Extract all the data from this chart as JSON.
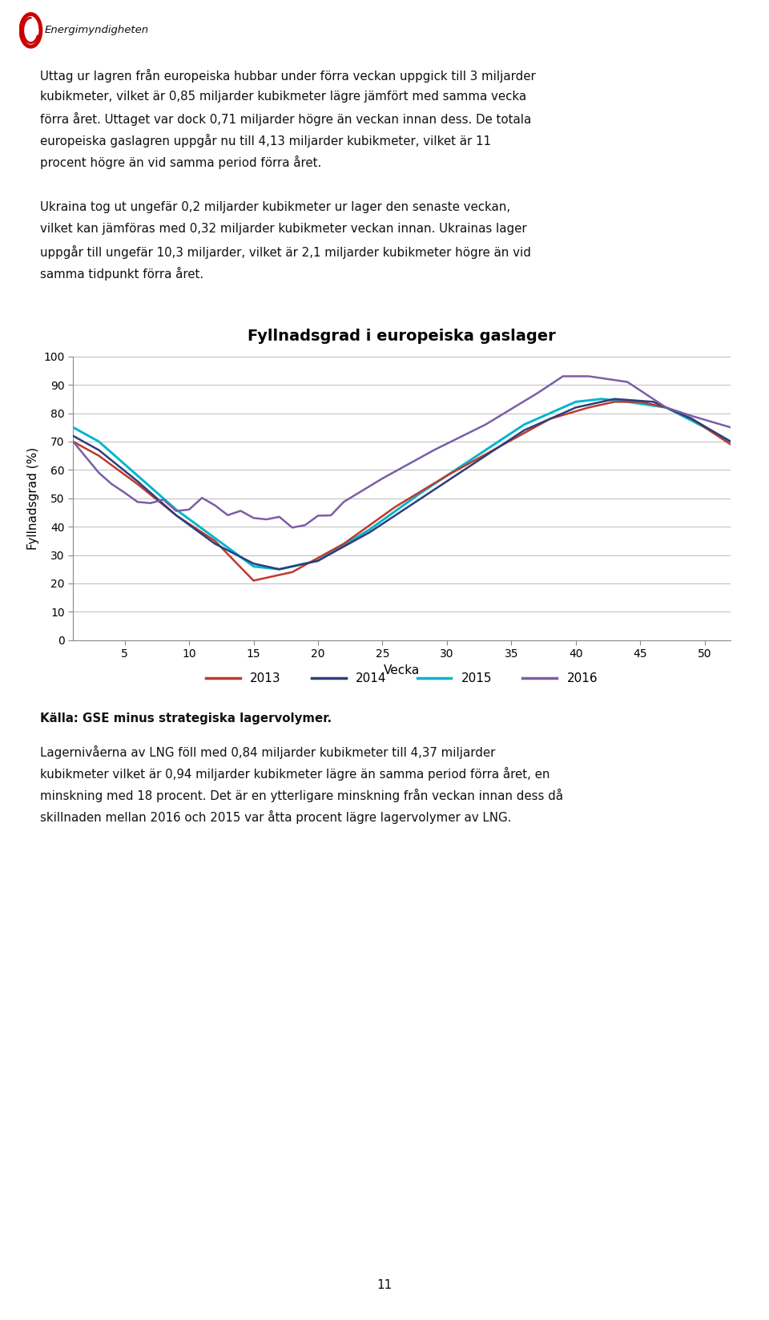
{
  "title": "Fyllnadsgrad i europeiska gaslager",
  "xlabel": "Vecka",
  "ylabel": "Fyllnadsgrad (%)",
  "ylim": [
    0,
    100
  ],
  "yticks": [
    0,
    10,
    20,
    30,
    40,
    50,
    60,
    70,
    80,
    90,
    100
  ],
  "xticks": [
    5,
    10,
    15,
    20,
    25,
    30,
    35,
    40,
    45,
    50
  ],
  "colors": {
    "2013": "#c0392b",
    "2014": "#2c3e7a",
    "2015": "#00b5cc",
    "2016": "#7B5EA7"
  },
  "header_lines": [
    "Uttag ur lagren från europeiska hubbar under förra veckan uppgick till 3 miljarder",
    "kubikmeter, vilket är 0,85 miljarder kubikmeter lägre jämfört med samma vecka",
    "förra året. Uttaget var dock 0,71 miljarder högre än veckan innan dess. De totala",
    "europeiska gaslagren uppgår nu till 4,13 miljarder kubikmeter, vilket är 11",
    "procent högre än vid samma period förra året."
  ],
  "ukraine_lines": [
    "Ukraina tog ut ungefär 0,2 miljarder kubikmeter ur lager den senaste veckan,",
    "vilket kan jämföras med 0,32 miljarder kubikmeter veckan innan. Ukrainas lager",
    "uppgår till ungefär 10,3 miljarder, vilket är 2,1 miljarder kubikmeter högre än vid",
    "samma tidpunkt förra året."
  ],
  "source_text": "Källa: GSE minus strategiska lagervolymer.",
  "footer_lines": [
    "Lagernivåerna av LNG föll med 0,84 miljarder kubikmeter till 4,37 miljarder",
    "kubikmeter vilket är 0,94 miljarder kubikmeter lägre än samma period förra året, en",
    "minskning med 18 procent. Det är en ytterligare minskning från veckan innan dess då",
    "skillnaden mellan 2016 och 2015 var åtta procent lägre lagervolymer av LNG."
  ],
  "page_number": "11",
  "bg": "#ffffff",
  "logo_color": "#cc0000",
  "logo_text": "Energimyndigheten",
  "legend_labels": [
    "2013",
    "2014",
    "2015",
    "2016"
  ]
}
